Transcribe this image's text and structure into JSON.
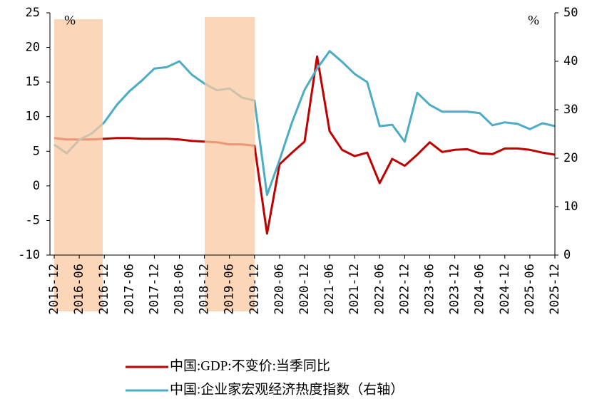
{
  "chart_data": {
    "type": "line",
    "categories": [
      "2015-12",
      null,
      "2016-06",
      null,
      "2016-12",
      null,
      "2017-06",
      null,
      "2017-12",
      null,
      "2018-06",
      null,
      "2018-12",
      null,
      "2019-06",
      null,
      "2019-12",
      null,
      "2020-06",
      null,
      "2020-12",
      null,
      "2021-06",
      null,
      "2021-12",
      null,
      "2022-06",
      null,
      "2022-12",
      null,
      "2023-06",
      null,
      "2023-12",
      null,
      "2024-06",
      null,
      "2024-12",
      null,
      "2025-06",
      null,
      "2025-12"
    ],
    "series": [
      {
        "name": "中国:GDP:不变价:当季同比",
        "color": "#c00000",
        "axis": "y",
        "values": [
          6.9,
          6.7,
          6.7,
          6.7,
          6.8,
          6.9,
          6.9,
          6.8,
          6.8,
          6.8,
          6.7,
          6.5,
          6.4,
          6.3,
          6.0,
          6.0,
          5.8,
          -6.9,
          3.1,
          4.8,
          6.4,
          18.7,
          7.9,
          5.2,
          4.3,
          4.8,
          0.4,
          3.9,
          2.9,
          4.5,
          6.3,
          4.9,
          5.2,
          5.3,
          4.7,
          4.6,
          5.4,
          5.4,
          5.2,
          4.8,
          4.5
        ]
      },
      {
        "name": "中国:企业家宏观经济热度指数（右轴）",
        "color": "#4bacc6",
        "axis": "y2",
        "values": [
          22.8,
          21.0,
          23.8,
          25.1,
          27.4,
          31.0,
          33.8,
          36.0,
          38.5,
          38.8,
          40.0,
          37.2,
          35.4,
          34.0,
          34.4,
          32.5,
          31.9,
          12.4,
          19.6,
          27.4,
          34.1,
          38.5,
          42.1,
          39.9,
          37.4,
          35.7,
          26.6,
          26.9,
          23.4,
          33.5,
          31.0,
          29.6,
          29.6,
          29.6,
          29.3,
          26.8,
          27.4,
          27.1,
          26.0,
          27.2,
          26.6
        ]
      }
    ],
    "ylim": [
      -10,
      25
    ],
    "yticks": [
      -10,
      -5,
      0,
      5,
      10,
      15,
      20,
      25
    ],
    "y2lim": [
      0,
      50
    ],
    "y2ticks": [
      0,
      10,
      20,
      30,
      40,
      50
    ],
    "y_unit": "%",
    "y2_unit": "%"
  }
}
